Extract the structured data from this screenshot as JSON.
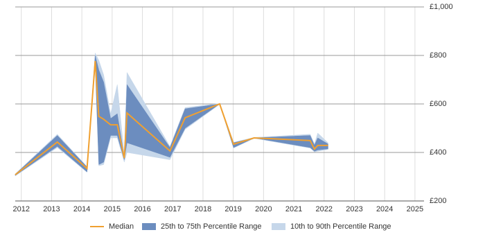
{
  "chart_data": {
    "type": "range-line",
    "x": [
      2011.8,
      2013.19,
      2014.17,
      2014.44,
      2014.56,
      2014.72,
      2014.95,
      2015.17,
      2015.4,
      2015.49,
      2016.91,
      2017.41,
      2018.55,
      2019.01,
      2019.69,
      2021.54,
      2021.68,
      2021.79,
      2022.13
    ],
    "series": [
      {
        "name": "10th to 90th Percentile Range",
        "color": "#c6d7ea",
        "low": [
          303,
          420,
          318,
          760,
          345,
          350,
          460,
          460,
          360,
          400,
          370,
          495,
          598,
          418,
          458,
          418,
          402,
          405,
          412
        ],
        "high": [
          312,
          475,
          342,
          810,
          780,
          720,
          560,
          680,
          390,
          730,
          425,
          585,
          602,
          442,
          462,
          475,
          435,
          480,
          440
        ]
      },
      {
        "name": "25th to 75th Percentile Range",
        "color": "#6c8dbf",
        "low": [
          305,
          425,
          320,
          770,
          350,
          360,
          470,
          470,
          370,
          440,
          380,
          500,
          600,
          420,
          460,
          420,
          405,
          410,
          415
        ],
        "high": [
          310,
          470,
          340,
          800,
          740,
          690,
          540,
          560,
          380,
          680,
          420,
          580,
          600,
          440,
          460,
          470,
          430,
          460,
          435
        ]
      },
      {
        "name": "Median",
        "color": "#f0a030",
        "values": [
          308,
          443,
          334,
          777,
          549,
          537,
          514,
          514,
          377,
          563,
          406,
          543,
          600,
          434,
          460,
          449,
          414,
          429,
          429
        ]
      }
    ],
    "xlim": [
      2011.8,
      2025.3
    ],
    "xticks": [
      2012,
      2013,
      2014,
      2015,
      2016,
      2017,
      2018,
      2019,
      2020,
      2021,
      2022,
      2023,
      2024,
      2025
    ],
    "ylim": [
      200,
      1000
    ],
    "yticks": [
      {
        "value": 200,
        "label": "£200"
      },
      {
        "value": 400,
        "label": "£400"
      },
      {
        "value": 600,
        "label": "£600"
      },
      {
        "value": 800,
        "label": "£800"
      },
      {
        "value": 1000,
        "label": "£1,000"
      }
    ],
    "grid": true
  }
}
